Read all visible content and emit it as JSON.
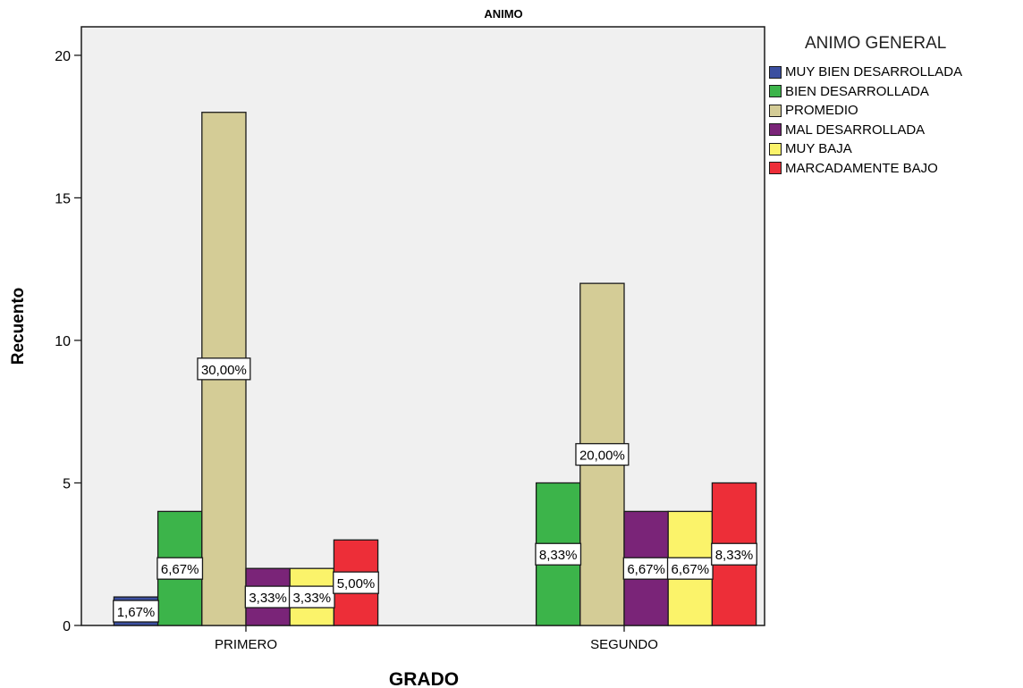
{
  "chart_data": {
    "type": "bar",
    "title": "ANIMO",
    "xlabel": "GRADO",
    "ylabel": "Recuento",
    "ylim": [
      0,
      21
    ],
    "yticks": [
      0,
      5,
      10,
      15,
      20
    ],
    "categories": [
      "PRIMERO",
      "SEGUNDO"
    ],
    "legend_title": "ANIMO GENERAL",
    "legend_position": "right",
    "grid": false,
    "series": [
      {
        "name": "MUY BIEN DESARROLLADA",
        "color": "#3b4fa0",
        "values": [
          1,
          0
        ],
        "labels": [
          "1,67%",
          ""
        ]
      },
      {
        "name": "BIEN DESARROLLADA",
        "color": "#3cb44a",
        "values": [
          4,
          5
        ],
        "labels": [
          "6,67%",
          "8,33%"
        ]
      },
      {
        "name": "PROMEDIO",
        "color": "#d4cc96",
        "values": [
          18,
          12
        ],
        "labels": [
          "30,00%",
          "20,00%"
        ]
      },
      {
        "name": "MAL DESARROLLADA",
        "color": "#7a2478",
        "values": [
          2,
          4
        ],
        "labels": [
          "3,33%",
          "6,67%"
        ]
      },
      {
        "name": "MUY BAJA",
        "color": "#fbf36a",
        "values": [
          2,
          4
        ],
        "labels": [
          "3,33%",
          "6,67%"
        ]
      },
      {
        "name": "MARCADAMENTE BAJO",
        "color": "#ed2e38",
        "values": [
          3,
          5
        ],
        "labels": [
          "5,00%",
          "8,33%"
        ]
      }
    ]
  }
}
